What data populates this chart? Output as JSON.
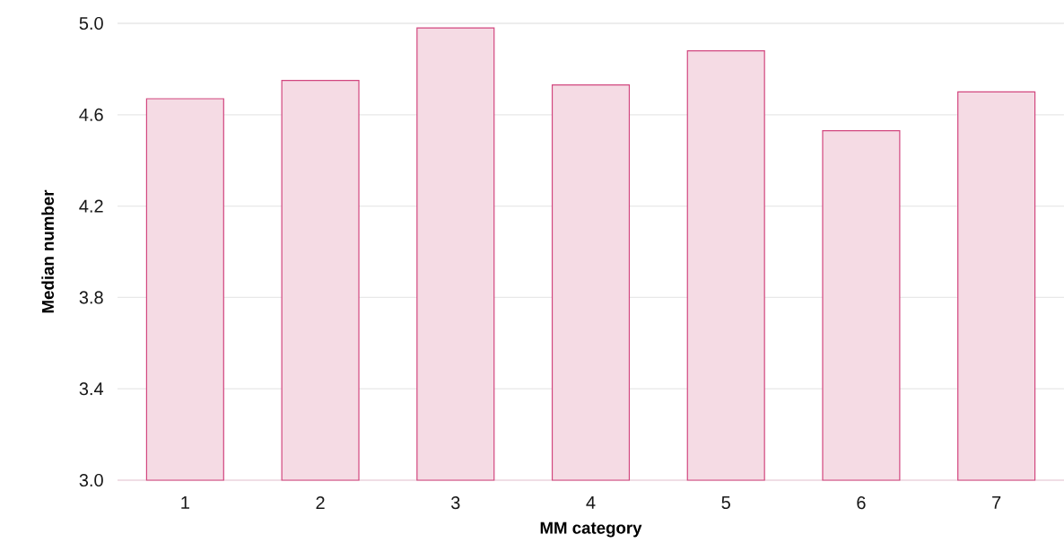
{
  "chart_data": {
    "type": "bar",
    "xlabel": "MM category",
    "ylabel": "Median number",
    "categories": [
      "1",
      "2",
      "3",
      "4",
      "5",
      "6",
      "7"
    ],
    "values": [
      4.67,
      4.75,
      4.98,
      4.73,
      4.88,
      4.53,
      4.7
    ],
    "color": "#f5dbe4",
    "ylim": [
      3.0,
      5.0
    ],
    "yticks": [
      {
        "value": 3.0,
        "label": "3.0"
      },
      {
        "value": 3.4,
        "label": "3.4"
      },
      {
        "value": 3.8,
        "label": "3.8"
      },
      {
        "value": 4.2,
        "label": "4.2"
      },
      {
        "value": 4.6,
        "label": "4.6"
      },
      {
        "value": 5.0,
        "label": "5.0"
      }
    ],
    "grid": "y"
  }
}
